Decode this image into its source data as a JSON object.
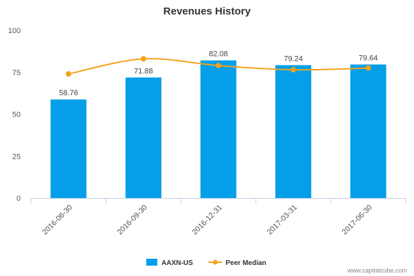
{
  "chart_data": {
    "type": "bar",
    "title": "Revenues History",
    "xlabel": "",
    "ylabel": "",
    "categories": [
      "2016-06-30",
      "2016-09-30",
      "2016-12-31",
      "2017-03-31",
      "2017-06-30"
    ],
    "ylim": [
      0,
      100
    ],
    "yticks": [
      "0",
      "25",
      "50",
      "75",
      "100"
    ],
    "series": [
      {
        "name": "AAXN-US",
        "type": "bar",
        "color": "#049fe8",
        "values": [
          58.76,
          71.88,
          82.08,
          79.24,
          79.64
        ],
        "labels": [
          "58.76",
          "71.88",
          "82.08",
          "79.24",
          "79.64"
        ]
      },
      {
        "name": "Peer Median",
        "type": "line",
        "color": "#f5a21d",
        "values": [
          74.0,
          83.0,
          79.0,
          76.5,
          77.5
        ]
      }
    ],
    "legend": "bottom-center",
    "grid": false
  },
  "credit": "www.capitalcube.com"
}
